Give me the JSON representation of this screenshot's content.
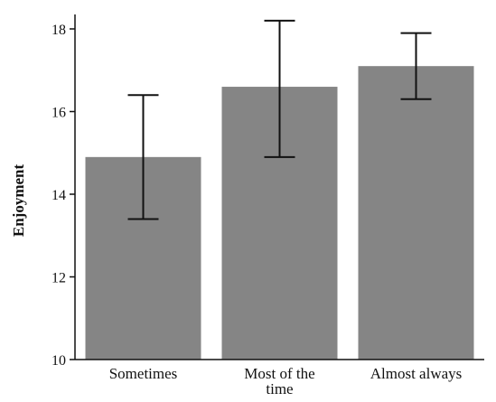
{
  "chart_data": {
    "type": "bar",
    "categories": [
      "Sometimes",
      "Most of the time",
      "Almost always"
    ],
    "category_label_lines": [
      [
        "Sometimes"
      ],
      [
        "Most of the",
        "time"
      ],
      [
        "Almost always"
      ]
    ],
    "values": [
      14.9,
      16.6,
      17.1
    ],
    "error_low": [
      13.4,
      14.9,
      16.3
    ],
    "error_high": [
      16.4,
      18.2,
      17.9
    ],
    "ylabel": "Enjoyment",
    "xlabel": "",
    "ylim": [
      10,
      18.3
    ],
    "yticks": [
      10,
      12,
      14,
      16,
      18
    ],
    "grid": false,
    "colors": {
      "bar": "#858585",
      "axis": "#111111",
      "error_bar": "#111111"
    }
  }
}
